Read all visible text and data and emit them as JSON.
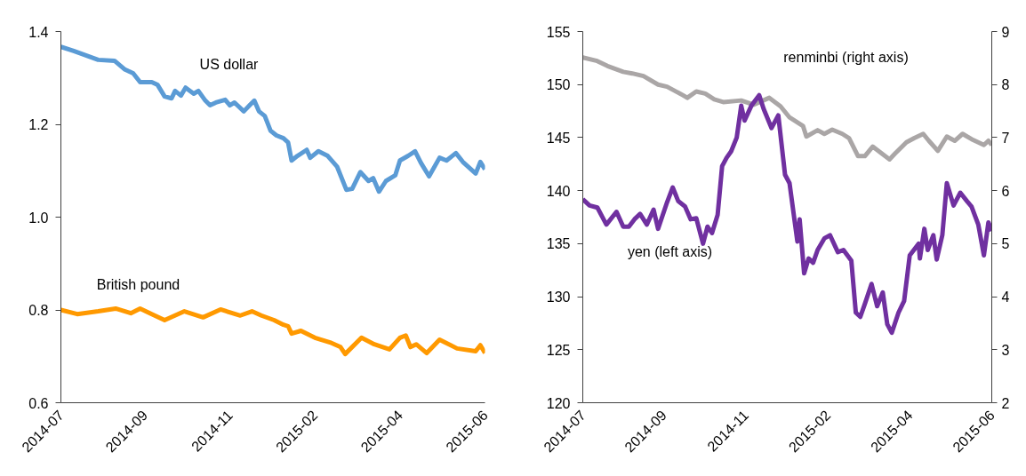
{
  "chart_data": [
    {
      "type": "line",
      "ylim": [
        0.6,
        1.4
      ],
      "yticks": [
        0.6,
        0.8,
        {
          "value": 1.0,
          "label": "1.0"
        },
        1.2,
        1.4
      ],
      "xlim": [
        "2014-07-01",
        "2015-06-30"
      ],
      "xticks": [
        {
          "value": "2014-07-01",
          "label": "2014-07"
        },
        {
          "value": "2014-09-11",
          "label": "2014-09"
        },
        {
          "value": "2014-11-23",
          "label": "2014-11"
        },
        {
          "value": "2015-02-04",
          "label": "2015-02"
        },
        {
          "value": "2015-04-18",
          "label": "2015-04"
        },
        {
          "value": "2015-06-30",
          "label": "2015-06"
        }
      ],
      "grid": false,
      "line_style": "solid",
      "series": [
        {
          "name": "US dollar",
          "color": "#5b9bd5",
          "x": [
            "2014-07-01",
            "2014-07-12",
            "2014-08-02",
            "2014-08-16",
            "2014-08-25",
            "2014-09-01",
            "2014-09-07",
            "2014-09-17",
            "2014-09-22",
            "2014-09-28",
            "2014-10-04",
            "2014-10-07",
            "2014-10-12",
            "2014-10-16",
            "2014-10-23",
            "2014-10-27",
            "2014-11-02",
            "2014-11-06",
            "2014-11-11",
            "2014-11-19",
            "2014-11-23",
            "2014-11-27",
            "2014-12-05",
            "2014-12-10",
            "2014-12-14",
            "2014-12-18",
            "2014-12-23",
            "2014-12-28",
            "2015-01-02",
            "2015-01-08",
            "2015-01-12",
            "2015-01-15",
            "2015-01-20",
            "2015-01-28",
            "2015-01-31",
            "2015-02-07",
            "2015-02-15",
            "2015-02-23",
            "2015-03-03",
            "2015-03-08",
            "2015-03-15",
            "2015-03-22",
            "2015-03-26",
            "2015-03-31",
            "2015-04-06",
            "2015-04-14",
            "2015-04-18",
            "2015-04-25",
            "2015-05-01",
            "2015-05-06",
            "2015-05-13",
            "2015-05-22",
            "2015-05-28",
            "2015-06-05",
            "2015-06-11",
            "2015-06-22",
            "2015-06-26",
            "2015-06-30"
          ],
          "values": [
            1.367,
            1.358,
            1.339,
            1.337,
            1.318,
            1.31,
            1.291,
            1.291,
            1.285,
            1.26,
            1.256,
            1.272,
            1.262,
            1.279,
            1.266,
            1.272,
            1.251,
            1.241,
            1.247,
            1.253,
            1.241,
            1.247,
            1.228,
            1.241,
            1.251,
            1.228,
            1.218,
            1.186,
            1.176,
            1.17,
            1.161,
            1.122,
            1.132,
            1.145,
            1.128,
            1.142,
            1.132,
            1.109,
            1.059,
            1.061,
            1.097,
            1.078,
            1.084,
            1.055,
            1.078,
            1.09,
            1.122,
            1.132,
            1.142,
            1.117,
            1.088,
            1.128,
            1.122,
            1.138,
            1.119,
            1.094,
            1.119,
            1.103
          ]
        },
        {
          "name": "British pound",
          "color": "#ff9900",
          "x": [
            "2014-07-01",
            "2014-07-15",
            "2014-08-02",
            "2014-08-17",
            "2014-08-30",
            "2014-09-07",
            "2014-09-17",
            "2014-09-28",
            "2014-10-15",
            "2014-10-31",
            "2014-11-15",
            "2014-12-02",
            "2014-12-12",
            "2014-12-20",
            "2014-12-31",
            "2015-01-08",
            "2015-01-12",
            "2015-01-15",
            "2015-01-23",
            "2015-02-04",
            "2015-02-17",
            "2015-02-26",
            "2015-03-02",
            "2015-03-16",
            "2015-03-27",
            "2015-04-09",
            "2015-04-18",
            "2015-04-23",
            "2015-04-27",
            "2015-05-02",
            "2015-05-11",
            "2015-05-22",
            "2015-06-06",
            "2015-06-22",
            "2015-06-26",
            "2015-06-30"
          ],
          "values": [
            0.8,
            0.791,
            0.797,
            0.803,
            0.793,
            0.803,
            0.791,
            0.778,
            0.797,
            0.784,
            0.801,
            0.788,
            0.797,
            0.788,
            0.778,
            0.768,
            0.765,
            0.749,
            0.755,
            0.74,
            0.73,
            0.72,
            0.705,
            0.74,
            0.726,
            0.715,
            0.74,
            0.745,
            0.72,
            0.726,
            0.707,
            0.736,
            0.717,
            0.711,
            0.724,
            0.707
          ]
        }
      ]
    },
    {
      "type": "line",
      "ylim": [
        120,
        155
      ],
      "yticks": [
        120,
        125,
        130,
        135,
        140,
        145,
        150,
        155
      ],
      "y2lim": [
        2,
        9
      ],
      "y2ticks": [
        2,
        3,
        4,
        5,
        6,
        7,
        8,
        9
      ],
      "xlim": [
        "2014-07-01",
        "2015-06-30"
      ],
      "xticks": [
        {
          "value": "2014-07-01",
          "label": "2014-07"
        },
        {
          "value": "2014-09-11",
          "label": "2014-09"
        },
        {
          "value": "2014-11-23",
          "label": "2014-11"
        },
        {
          "value": "2015-02-04",
          "label": "2015-02"
        },
        {
          "value": "2015-04-18",
          "label": "2015-04"
        },
        {
          "value": "2015-06-30",
          "label": "2015-06"
        }
      ],
      "grid": false,
      "line_style": "solid",
      "series": [
        {
          "name": "renminbi (right axis)",
          "color": "#aaa6a6",
          "axis": "y2",
          "x": [
            "2014-07-01",
            "2014-07-13",
            "2014-07-23",
            "2014-08-06",
            "2014-08-14",
            "2014-08-24",
            "2014-09-06",
            "2014-09-14",
            "2014-09-28",
            "2014-10-02",
            "2014-10-10",
            "2014-10-18",
            "2014-10-26",
            "2014-11-03",
            "2014-11-19",
            "2014-11-30",
            "2014-12-14",
            "2014-12-24",
            "2015-01-01",
            "2015-01-13",
            "2015-01-16",
            "2015-01-26",
            "2015-02-01",
            "2015-02-08",
            "2015-02-17",
            "2015-02-23",
            "2015-03-03",
            "2015-03-09",
            "2015-03-16",
            "2015-03-24",
            "2015-03-31",
            "2015-04-05",
            "2015-04-15",
            "2015-04-22",
            "2015-04-30",
            "2015-05-05",
            "2015-05-13",
            "2015-05-21",
            "2015-05-28",
            "2015-06-04",
            "2015-06-12",
            "2015-06-23",
            "2015-06-27",
            "2015-06-30"
          ],
          "values": [
            8.51,
            8.45,
            8.35,
            8.24,
            8.21,
            8.16,
            8.0,
            7.96,
            7.8,
            7.75,
            7.87,
            7.83,
            7.72,
            7.67,
            7.7,
            7.62,
            7.75,
            7.59,
            7.38,
            7.22,
            7.02,
            7.14,
            7.07,
            7.15,
            7.07,
            6.99,
            6.65,
            6.65,
            6.83,
            6.7,
            6.59,
            6.7,
            6.91,
            6.99,
            7.07,
            6.94,
            6.75,
            7.02,
            6.94,
            7.07,
            6.97,
            6.86,
            6.94,
            6.86
          ]
        },
        {
          "name": "yen (left axis)",
          "color": "#7030a0",
          "x": [
            "2014-07-01",
            "2014-07-07",
            "2014-07-14",
            "2014-07-18",
            "2014-07-22",
            "2014-07-31",
            "2014-08-06",
            "2014-08-11",
            "2014-08-16",
            "2014-08-21",
            "2014-08-27",
            "2014-09-02",
            "2014-09-06",
            "2014-09-14",
            "2014-09-19",
            "2014-09-24",
            "2014-09-30",
            "2014-10-05",
            "2014-10-10",
            "2014-10-16",
            "2014-10-20",
            "2014-10-24",
            "2014-10-29",
            "2014-11-02",
            "2014-11-06",
            "2014-11-10",
            "2014-11-15",
            "2014-11-19",
            "2014-11-22",
            "2014-11-28",
            "2014-12-05",
            "2014-12-09",
            "2014-12-16",
            "2014-12-22",
            "2014-12-28",
            "2015-01-01",
            "2015-01-08",
            "2015-01-10",
            "2015-01-14",
            "2015-01-18",
            "2015-01-22",
            "2015-01-26",
            "2015-02-01",
            "2015-02-06",
            "2015-02-13",
            "2015-02-18",
            "2015-02-25",
            "2015-03-01",
            "2015-03-05",
            "2015-03-09",
            "2015-03-15",
            "2015-03-20",
            "2015-03-25",
            "2015-03-29",
            "2015-04-02",
            "2015-04-08",
            "2015-04-13",
            "2015-04-18",
            "2015-04-26",
            "2015-04-27",
            "2015-05-01",
            "2015-05-04",
            "2015-05-09",
            "2015-05-12",
            "2015-05-17",
            "2015-05-21",
            "2015-05-27",
            "2015-06-02",
            "2015-06-08",
            "2015-06-12",
            "2015-06-18",
            "2015-06-23",
            "2015-06-27",
            "2015-06-30"
          ],
          "values": [
            139.2,
            138.6,
            138.4,
            137.6,
            136.8,
            138.0,
            136.6,
            136.6,
            137.3,
            137.8,
            136.8,
            138.2,
            136.4,
            138.9,
            140.3,
            139.0,
            138.5,
            137.3,
            137.4,
            135.0,
            136.6,
            136.0,
            137.7,
            142.3,
            143.1,
            143.7,
            145.0,
            148.0,
            146.6,
            148.0,
            149.0,
            147.7,
            145.9,
            147.1,
            141.5,
            140.7,
            135.2,
            137.3,
            132.2,
            133.6,
            133.2,
            134.4,
            135.5,
            135.8,
            134.2,
            134.4,
            133.4,
            128.5,
            128.1,
            129.3,
            131.2,
            129.1,
            130.4,
            127.4,
            126.6,
            128.5,
            129.6,
            133.9,
            135.0,
            133.6,
            136.4,
            134.4,
            135.8,
            133.5,
            135.8,
            140.7,
            138.6,
            139.8,
            139.0,
            138.5,
            136.8,
            133.9,
            137.0,
            136.2
          ]
        }
      ]
    }
  ]
}
